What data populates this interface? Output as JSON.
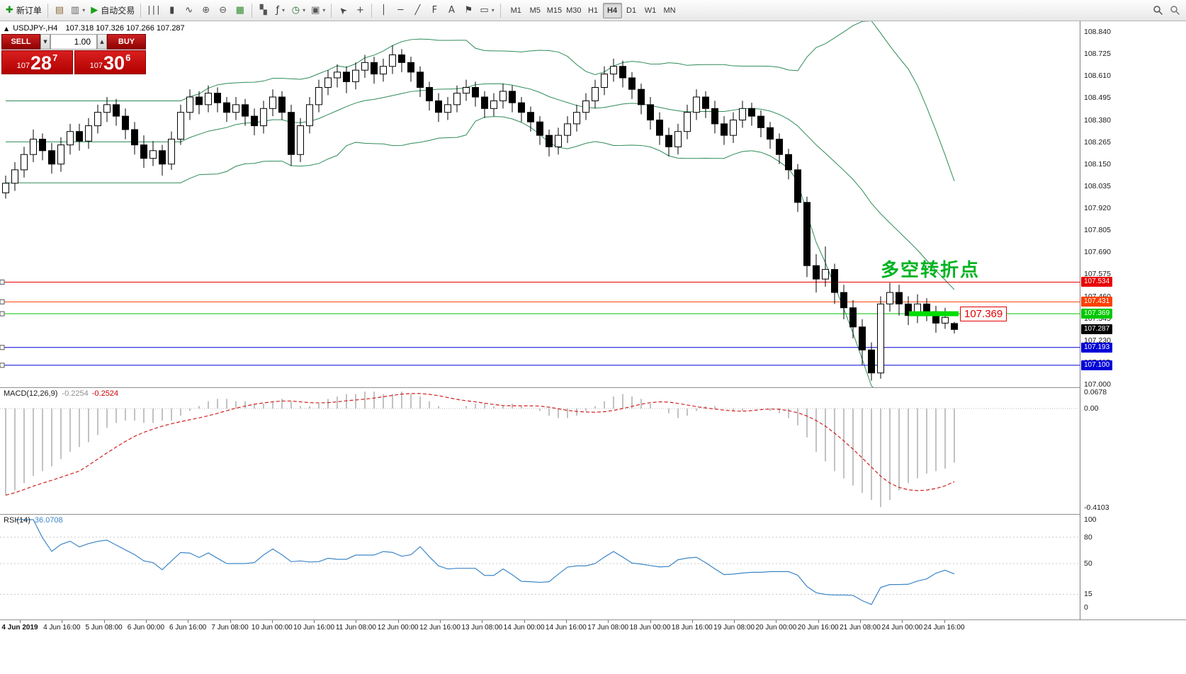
{
  "icons": {
    "new_order": "✚",
    "chart_window": "▤",
    "profiles": "▥",
    "autotrade_play": "▶",
    "bar_chart": "∣∣∣",
    "candle_chart": "▮",
    "line_chart": "∿",
    "zoom_in": "⊕",
    "zoom_out": "⊖",
    "grid": "▦",
    "tile_windows": "▚",
    "indicators": "ƒ",
    "periods": "◷",
    "templates": "▣",
    "cursor": "➤",
    "crosshair": "+",
    "vline": "│",
    "hline": "─",
    "trendline": "╱",
    "fibonacci": "F",
    "text": "A",
    "label_flag": "⚑",
    "shapes": "▭",
    "dropdown": "▾",
    "panel_collapse": "▲"
  },
  "toolbar": {
    "buttons": [
      {
        "name": "new-order",
        "icon": "new_order",
        "color": "#149414",
        "label": "新订单"
      },
      {
        "sep": true
      },
      {
        "name": "chart-windows",
        "icon": "chart_window",
        "color": "#8a6d3b"
      },
      {
        "name": "profiles",
        "icon": "profiles",
        "color": "#666666",
        "dropdown": true
      },
      {
        "name": "autotrading",
        "icon": "autotrade_play",
        "color": "#18a018",
        "label": "自动交易"
      },
      {
        "sep": true
      },
      {
        "name": "bar-chart",
        "icon": "bar_chart",
        "color": "#444444"
      },
      {
        "name": "candlestick-mode",
        "icon": "candle_chart",
        "color": "#444444"
      },
      {
        "name": "line-chart",
        "icon": "line_chart",
        "color": "#444444"
      },
      {
        "name": "zoom-in",
        "icon": "zoom_in",
        "color": "#555555"
      },
      {
        "name": "zoom-out",
        "icon": "zoom_out",
        "color": "#555555"
      },
      {
        "name": "auto-arrange",
        "icon": "grid",
        "color": "#2e8b2e"
      },
      {
        "sep": true
      },
      {
        "name": "tile-windows",
        "icon": "tile_windows",
        "color": "#555555"
      },
      {
        "name": "indicators-list",
        "icon": "indicators",
        "color": "#333333",
        "dropdown": true
      },
      {
        "name": "periods",
        "icon": "periods",
        "color": "#2e6b2e",
        "dropdown": true
      },
      {
        "name": "templates",
        "icon": "templates",
        "color": "#555555",
        "dropdown": true
      },
      {
        "sep": true
      },
      {
        "name": "cursor",
        "icon": "cursor",
        "color": "#444444",
        "cls": "rot-nw"
      },
      {
        "name": "crosshair",
        "icon": "crosshair",
        "color": "#444444"
      },
      {
        "sep": true
      },
      {
        "name": "vertical-line",
        "icon": "vline",
        "color": "#444444"
      },
      {
        "name": "horizontal-line",
        "icon": "hline",
        "color": "#444444"
      },
      {
        "name": "trendline",
        "icon": "trendline",
        "color": "#444444"
      },
      {
        "name": "fibonacci",
        "icon": "fibonacci",
        "color": "#444444"
      },
      {
        "name": "text",
        "icon": "text",
        "color": "#444444"
      },
      {
        "name": "text-label",
        "icon": "label_flag",
        "color": "#444444"
      },
      {
        "name": "shapes",
        "icon": "shapes",
        "color": "#444444",
        "dropdown": true
      },
      {
        "sep": true
      }
    ],
    "timeframes": [
      "M1",
      "M5",
      "M15",
      "M30",
      "H1",
      "H4",
      "D1",
      "W1",
      "MN"
    ],
    "active_timeframe": "H4"
  },
  "chart": {
    "symbol": "USDJPY-,H4",
    "quote": "107.318 107.326 107.266 107.287",
    "trade_panel": {
      "sell_label": "SELL",
      "buy_label": "BUY",
      "volume": "1.00",
      "sell_price": {
        "prefix": "107",
        "big": "28",
        "sup": "7"
      },
      "buy_price": {
        "prefix": "107",
        "big": "30",
        "sup": "6"
      }
    },
    "annotation": "多空转折点",
    "price_flag": "107.369",
    "highlight": {
      "price": 107.369,
      "color": "#00dc00"
    },
    "levels": [
      {
        "label": "107.534",
        "price": 107.534,
        "color": "#e80000",
        "anchor": true
      },
      {
        "label": "107.431",
        "price": 107.431,
        "color": "#ff4000",
        "anchor": true
      },
      {
        "label": "107.369",
        "price": 107.369,
        "color": "#00c800",
        "anchor": true
      },
      {
        "label": "107.287",
        "price": 107.287,
        "color": "#000000",
        "no_line": true
      },
      {
        "label": "107.193",
        "price": 107.193,
        "color": "#0000d8",
        "anchor": true
      },
      {
        "label": "107.100",
        "price": 107.1,
        "color": "#0000d8",
        "anchor": true
      }
    ],
    "y_axis": [
      "108.840",
      "108.725",
      "108.610",
      "108.495",
      "108.380",
      "108.265",
      "108.150",
      "108.035",
      "107.920",
      "107.805",
      "107.690",
      "107.575",
      "107.460",
      "107.345",
      "107.230",
      "107.115",
      "107.000"
    ]
  },
  "chart_data": {
    "type": "candlestick",
    "symbol": "USDJPY-",
    "timeframe": "H4",
    "ylim": [
      107.0,
      108.84
    ],
    "x_labels": [
      "4 Jun 2019",
      "4 Jun 16:00",
      "5 Jun 08:00",
      "6 Jun 00:00",
      "6 Jun 16:00",
      "7 Jun 08:00",
      "10 Jun 00:00",
      "10 Jun 16:00",
      "11 Jun 08:00",
      "12 Jun 00:00",
      "12 Jun 16:00",
      "13 Jun 08:00",
      "14 Jun 00:00",
      "14 Jun 16:00",
      "17 Jun 08:00",
      "18 Jun 00:00",
      "18 Jun 16:00",
      "19 Jun 08:00",
      "20 Jun 00:00",
      "20 Jun 16:00",
      "21 Jun 08:00",
      "24 Jun 00:00",
      "24 Jun 16:00"
    ],
    "candles": [
      [
        108.0,
        108.09,
        107.97,
        108.05
      ],
      [
        108.05,
        108.16,
        108.01,
        108.12
      ],
      [
        108.12,
        108.24,
        108.08,
        108.2
      ],
      [
        108.2,
        108.33,
        108.16,
        108.28
      ],
      [
        108.28,
        108.31,
        108.17,
        108.22
      ],
      [
        108.22,
        108.26,
        108.1,
        108.15
      ],
      [
        108.15,
        108.29,
        108.11,
        108.25
      ],
      [
        108.25,
        108.36,
        108.2,
        108.32
      ],
      [
        108.32,
        108.36,
        108.22,
        108.27
      ],
      [
        108.27,
        108.39,
        108.23,
        108.35
      ],
      [
        108.35,
        108.46,
        108.31,
        108.42
      ],
      [
        108.42,
        108.5,
        108.37,
        108.46
      ],
      [
        108.46,
        108.49,
        108.35,
        108.4
      ],
      [
        108.4,
        108.44,
        108.28,
        108.33
      ],
      [
        108.33,
        108.37,
        108.2,
        108.25
      ],
      [
        108.25,
        108.3,
        108.13,
        108.18
      ],
      [
        108.18,
        108.27,
        108.14,
        108.22
      ],
      [
        108.22,
        108.25,
        108.09,
        108.15
      ],
      [
        108.15,
        108.32,
        108.12,
        108.28
      ],
      [
        108.28,
        108.46,
        108.25,
        108.42
      ],
      [
        108.42,
        108.54,
        108.38,
        108.5
      ],
      [
        108.5,
        108.53,
        108.41,
        108.46
      ],
      [
        108.46,
        108.56,
        108.42,
        108.52
      ],
      [
        108.52,
        108.55,
        108.42,
        108.47
      ],
      [
        108.47,
        108.5,
        108.37,
        108.42
      ],
      [
        108.42,
        108.5,
        108.38,
        108.46
      ],
      [
        108.46,
        108.49,
        108.35,
        108.4
      ],
      [
        108.4,
        108.44,
        108.3,
        108.35
      ],
      [
        108.35,
        108.48,
        108.31,
        108.44
      ],
      [
        108.44,
        108.54,
        108.4,
        108.5
      ],
      [
        108.5,
        108.53,
        108.38,
        108.42
      ],
      [
        108.42,
        108.46,
        108.14,
        108.2
      ],
      [
        108.2,
        108.39,
        108.16,
        108.35
      ],
      [
        108.35,
        108.5,
        108.31,
        108.46
      ],
      [
        108.46,
        108.59,
        108.42,
        108.55
      ],
      [
        108.55,
        108.64,
        108.51,
        108.6
      ],
      [
        108.6,
        108.67,
        108.55,
        108.63
      ],
      [
        108.63,
        108.66,
        108.52,
        108.58
      ],
      [
        108.58,
        108.68,
        108.54,
        108.64
      ],
      [
        108.64,
        108.72,
        108.6,
        108.68
      ],
      [
        108.68,
        108.71,
        108.57,
        108.62
      ],
      [
        108.62,
        108.7,
        108.58,
        108.66
      ],
      [
        108.66,
        108.77,
        108.62,
        108.72
      ],
      [
        108.72,
        108.75,
        108.63,
        108.68
      ],
      [
        108.68,
        108.71,
        108.58,
        108.63
      ],
      [
        108.63,
        108.66,
        108.5,
        108.55
      ],
      [
        108.55,
        108.58,
        108.43,
        108.48
      ],
      [
        108.48,
        108.52,
        108.37,
        108.42
      ],
      [
        108.42,
        108.5,
        108.38,
        108.46
      ],
      [
        108.46,
        108.56,
        108.42,
        108.52
      ],
      [
        108.52,
        108.59,
        108.48,
        108.55
      ],
      [
        108.55,
        108.58,
        108.45,
        108.5
      ],
      [
        108.5,
        108.53,
        108.39,
        108.44
      ],
      [
        108.44,
        108.52,
        108.4,
        108.48
      ],
      [
        108.48,
        108.57,
        108.44,
        108.53
      ],
      [
        108.53,
        108.56,
        108.42,
        108.47
      ],
      [
        108.47,
        108.5,
        108.37,
        108.42
      ],
      [
        108.42,
        108.45,
        108.32,
        108.37
      ],
      [
        108.37,
        108.4,
        108.25,
        108.3
      ],
      [
        108.3,
        108.33,
        108.19,
        108.24
      ],
      [
        108.24,
        108.34,
        108.2,
        108.3
      ],
      [
        108.3,
        108.4,
        108.26,
        108.36
      ],
      [
        108.36,
        108.46,
        108.32,
        108.42
      ],
      [
        108.42,
        108.52,
        108.38,
        108.48
      ],
      [
        108.48,
        108.59,
        108.44,
        108.55
      ],
      [
        108.55,
        108.66,
        108.51,
        108.62
      ],
      [
        108.62,
        108.7,
        108.58,
        108.66
      ],
      [
        108.66,
        108.69,
        108.55,
        108.6
      ],
      [
        108.6,
        108.63,
        108.49,
        108.54
      ],
      [
        108.54,
        108.57,
        108.41,
        108.46
      ],
      [
        108.46,
        108.5,
        108.33,
        108.38
      ],
      [
        108.38,
        108.42,
        108.25,
        108.3
      ],
      [
        108.3,
        108.34,
        108.19,
        108.24
      ],
      [
        108.24,
        108.36,
        108.2,
        108.32
      ],
      [
        108.32,
        108.46,
        108.28,
        108.42
      ],
      [
        108.42,
        108.54,
        108.38,
        108.5
      ],
      [
        108.5,
        108.53,
        108.39,
        108.44
      ],
      [
        108.44,
        108.48,
        108.31,
        108.36
      ],
      [
        108.36,
        108.4,
        108.25,
        108.3
      ],
      [
        108.3,
        108.42,
        108.26,
        108.38
      ],
      [
        108.38,
        108.48,
        108.34,
        108.44
      ],
      [
        108.44,
        108.47,
        108.35,
        108.4
      ],
      [
        108.4,
        108.43,
        108.29,
        108.34
      ],
      [
        108.34,
        108.37,
        108.23,
        108.28
      ],
      [
        108.28,
        108.31,
        108.15,
        108.2
      ],
      [
        108.2,
        108.23,
        108.07,
        108.12
      ],
      [
        108.12,
        108.15,
        107.9,
        107.95
      ],
      [
        107.95,
        107.98,
        107.56,
        107.62
      ],
      [
        107.62,
        107.68,
        107.48,
        107.55
      ],
      [
        107.55,
        107.72,
        107.51,
        107.6
      ],
      [
        107.6,
        107.63,
        107.42,
        107.48
      ],
      [
        107.48,
        107.52,
        107.34,
        107.4
      ],
      [
        107.4,
        107.44,
        107.24,
        107.3
      ],
      [
        107.3,
        107.34,
        107.1,
        107.18
      ],
      [
        107.18,
        107.22,
        107.02,
        107.06
      ],
      [
        107.06,
        107.46,
        107.03,
        107.42
      ],
      [
        107.42,
        107.53,
        107.38,
        107.48
      ],
      [
        107.48,
        107.52,
        107.36,
        107.42
      ],
      [
        107.42,
        107.46,
        107.31,
        107.36
      ],
      [
        107.36,
        107.47,
        107.32,
        107.42
      ],
      [
        107.42,
        107.45,
        107.33,
        107.38
      ],
      [
        107.38,
        107.41,
        107.27,
        107.32
      ],
      [
        107.32,
        107.4,
        107.29,
        107.35
      ],
      [
        107.318,
        107.326,
        107.266,
        107.287
      ]
    ],
    "indicators": {
      "bollinger": {
        "period": 20,
        "deviation": 2,
        "color": "#2e8b57"
      },
      "macd": {
        "label": "MACD(12,26,9)",
        "value_text": "-0.2254",
        "signal_text": "-0.2524",
        "axis": [
          [
            "0.0678",
            0.0678
          ],
          [
            "0.00",
            0
          ],
          [
            "-0.4103",
            -0.4103
          ]
        ],
        "values": [
          -0.36,
          -0.34,
          -0.31,
          -0.28,
          -0.26,
          -0.24,
          -0.21,
          -0.18,
          -0.16,
          -0.14,
          -0.11,
          -0.08,
          -0.06,
          -0.05,
          -0.05,
          -0.06,
          -0.06,
          -0.05,
          -0.05,
          -0.03,
          -0.01,
          0.01,
          0.03,
          0.04,
          0.04,
          0.03,
          0.03,
          0.02,
          0.02,
          0.03,
          0.04,
          0.03,
          0.01,
          0.01,
          0.02,
          0.04,
          0.05,
          0.06,
          0.06,
          0.07,
          0.07,
          0.06,
          0.06,
          0.07,
          0.06,
          0.05,
          0.03,
          0.01,
          0.0,
          0.0,
          0.01,
          0.02,
          0.02,
          0.01,
          0.01,
          0.02,
          0.01,
          0.0,
          -0.01,
          -0.03,
          -0.04,
          -0.04,
          -0.03,
          -0.01,
          0.01,
          0.03,
          0.05,
          0.06,
          0.05,
          0.04,
          0.02,
          0.0,
          -0.02,
          -0.04,
          -0.03,
          -0.01,
          0.01,
          0.01,
          0.0,
          -0.01,
          -0.01,
          0.0,
          0.0,
          -0.01,
          -0.02,
          -0.04,
          -0.07,
          -0.12,
          -0.18,
          -0.22,
          -0.26,
          -0.29,
          -0.32,
          -0.35,
          -0.38,
          -0.41,
          -0.38,
          -0.34,
          -0.31,
          -0.29,
          -0.27,
          -0.26,
          -0.25,
          -0.2254
        ]
      },
      "rsi": {
        "label": "RSI(14)",
        "value_text": "36.0708",
        "color": "#3e86c8",
        "axis": [
          [
            "100",
            100
          ],
          [
            "80",
            80
          ],
          [
            "50",
            50
          ],
          [
            "15",
            15
          ],
          [
            "0",
            0
          ]
        ],
        "levels": [
          80,
          50,
          15
        ]
      }
    }
  }
}
